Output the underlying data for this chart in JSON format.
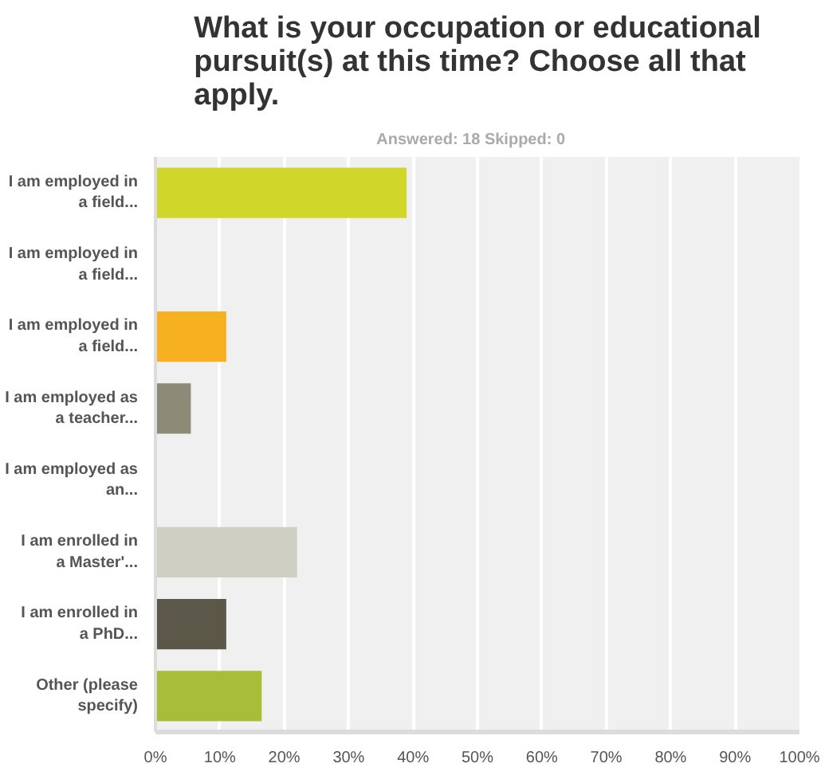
{
  "chart_data": {
    "type": "bar",
    "orientation": "horizontal",
    "title": "What is your occupation or educational pursuit(s) at this time? Choose all that apply.",
    "subtitle": "Answered: 18    Skipped: 0",
    "categories": [
      "I am employed in a field...",
      "I am employed in a field...",
      "I am employed in a field...",
      "I am employed as a teacher...",
      "I am employed as an...",
      "I am enrolled in a Master'...",
      "I am enrolled in a PhD...",
      "Other (please specify)"
    ],
    "values": [
      39,
      0,
      11,
      5.5,
      0,
      22,
      11,
      16.5
    ],
    "colors": [
      "#d0d62a",
      "#d0d62a",
      "#f7b01f",
      "#8b8b77",
      "#cfcfc3",
      "#cfcfc3",
      "#5b584a",
      "#a8bd38"
    ],
    "xlim": [
      0,
      100
    ],
    "xticks": [
      {
        "value": 0,
        "label": "0%"
      },
      {
        "value": 10,
        "label": "10%"
      },
      {
        "value": 20,
        "label": "20%"
      },
      {
        "value": 30,
        "label": "30%"
      },
      {
        "value": 40,
        "label": "40%"
      },
      {
        "value": 50,
        "label": "50%"
      },
      {
        "value": 60,
        "label": "60%"
      },
      {
        "value": 70,
        "label": "70%"
      },
      {
        "value": 80,
        "label": "80%"
      },
      {
        "value": 90,
        "label": "90%"
      },
      {
        "value": 100,
        "label": "100%"
      }
    ],
    "grid": "x"
  }
}
